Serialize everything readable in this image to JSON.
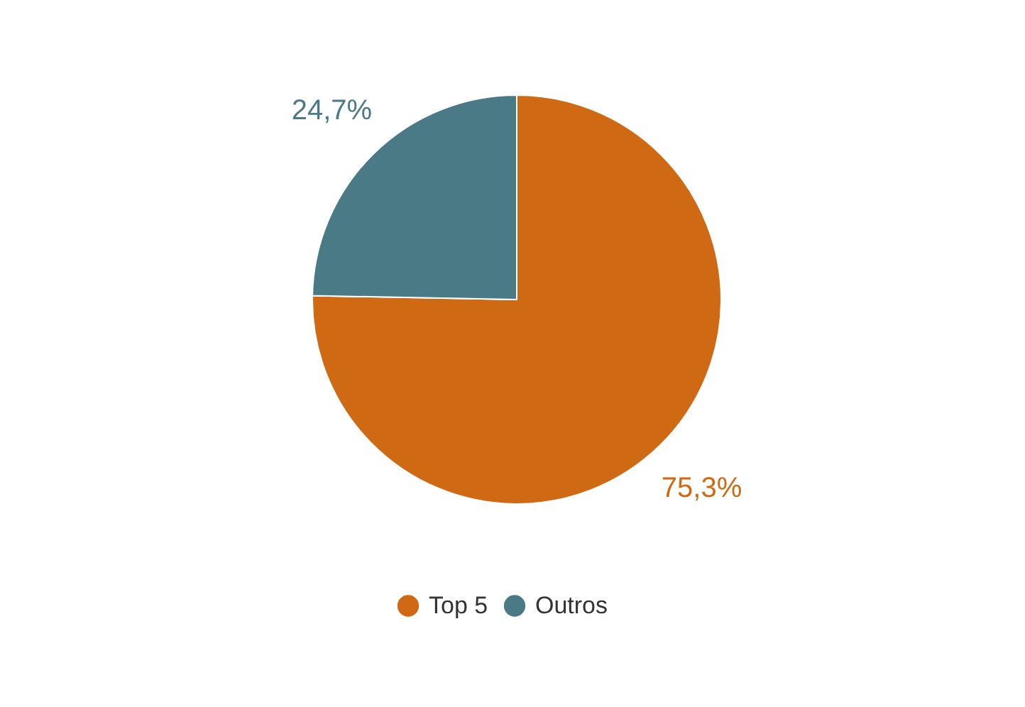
{
  "chart_data": {
    "type": "pie",
    "categories": [
      "Top 5",
      "Outros"
    ],
    "values": [
      75.3,
      24.7
    ],
    "colors": [
      "#cf6913",
      "#4a7a85"
    ],
    "value_labels": [
      "75,3%",
      "24,7%"
    ],
    "legend": "bottom"
  }
}
